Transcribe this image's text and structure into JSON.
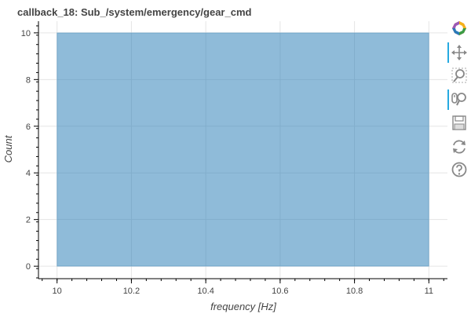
{
  "chart_data": {
    "type": "bar",
    "title": "callback_18: Sub_/system/emergency/gear_cmd",
    "xlabel": "frequency [Hz]",
    "ylabel": "Count",
    "xlim": [
      9.95,
      11.05
    ],
    "ylim": [
      -0.5,
      10.5
    ],
    "x_ticks": [
      "10",
      "10.2",
      "10.4",
      "10.6",
      "10.8",
      "11"
    ],
    "y_ticks": [
      "0",
      "2",
      "4",
      "6",
      "8",
      "10"
    ],
    "bins": [
      {
        "left": 10,
        "right": 11,
        "count": 10
      }
    ],
    "bar_color": "#1f77b4",
    "grid": true,
    "legend": "none"
  },
  "toolbar": {
    "tools": [
      {
        "name": "bokeh-logo-icon",
        "active": false,
        "interactable": true
      },
      {
        "name": "pan-icon",
        "active": true,
        "interactable": true
      },
      {
        "name": "box-zoom-icon",
        "active": false,
        "interactable": true
      },
      {
        "name": "wheel-zoom-icon",
        "active": true,
        "interactable": true
      },
      {
        "name": "save-icon",
        "active": false,
        "interactable": true
      },
      {
        "name": "reset-icon",
        "active": false,
        "interactable": true
      },
      {
        "name": "help-icon",
        "active": false,
        "interactable": true
      }
    ]
  }
}
